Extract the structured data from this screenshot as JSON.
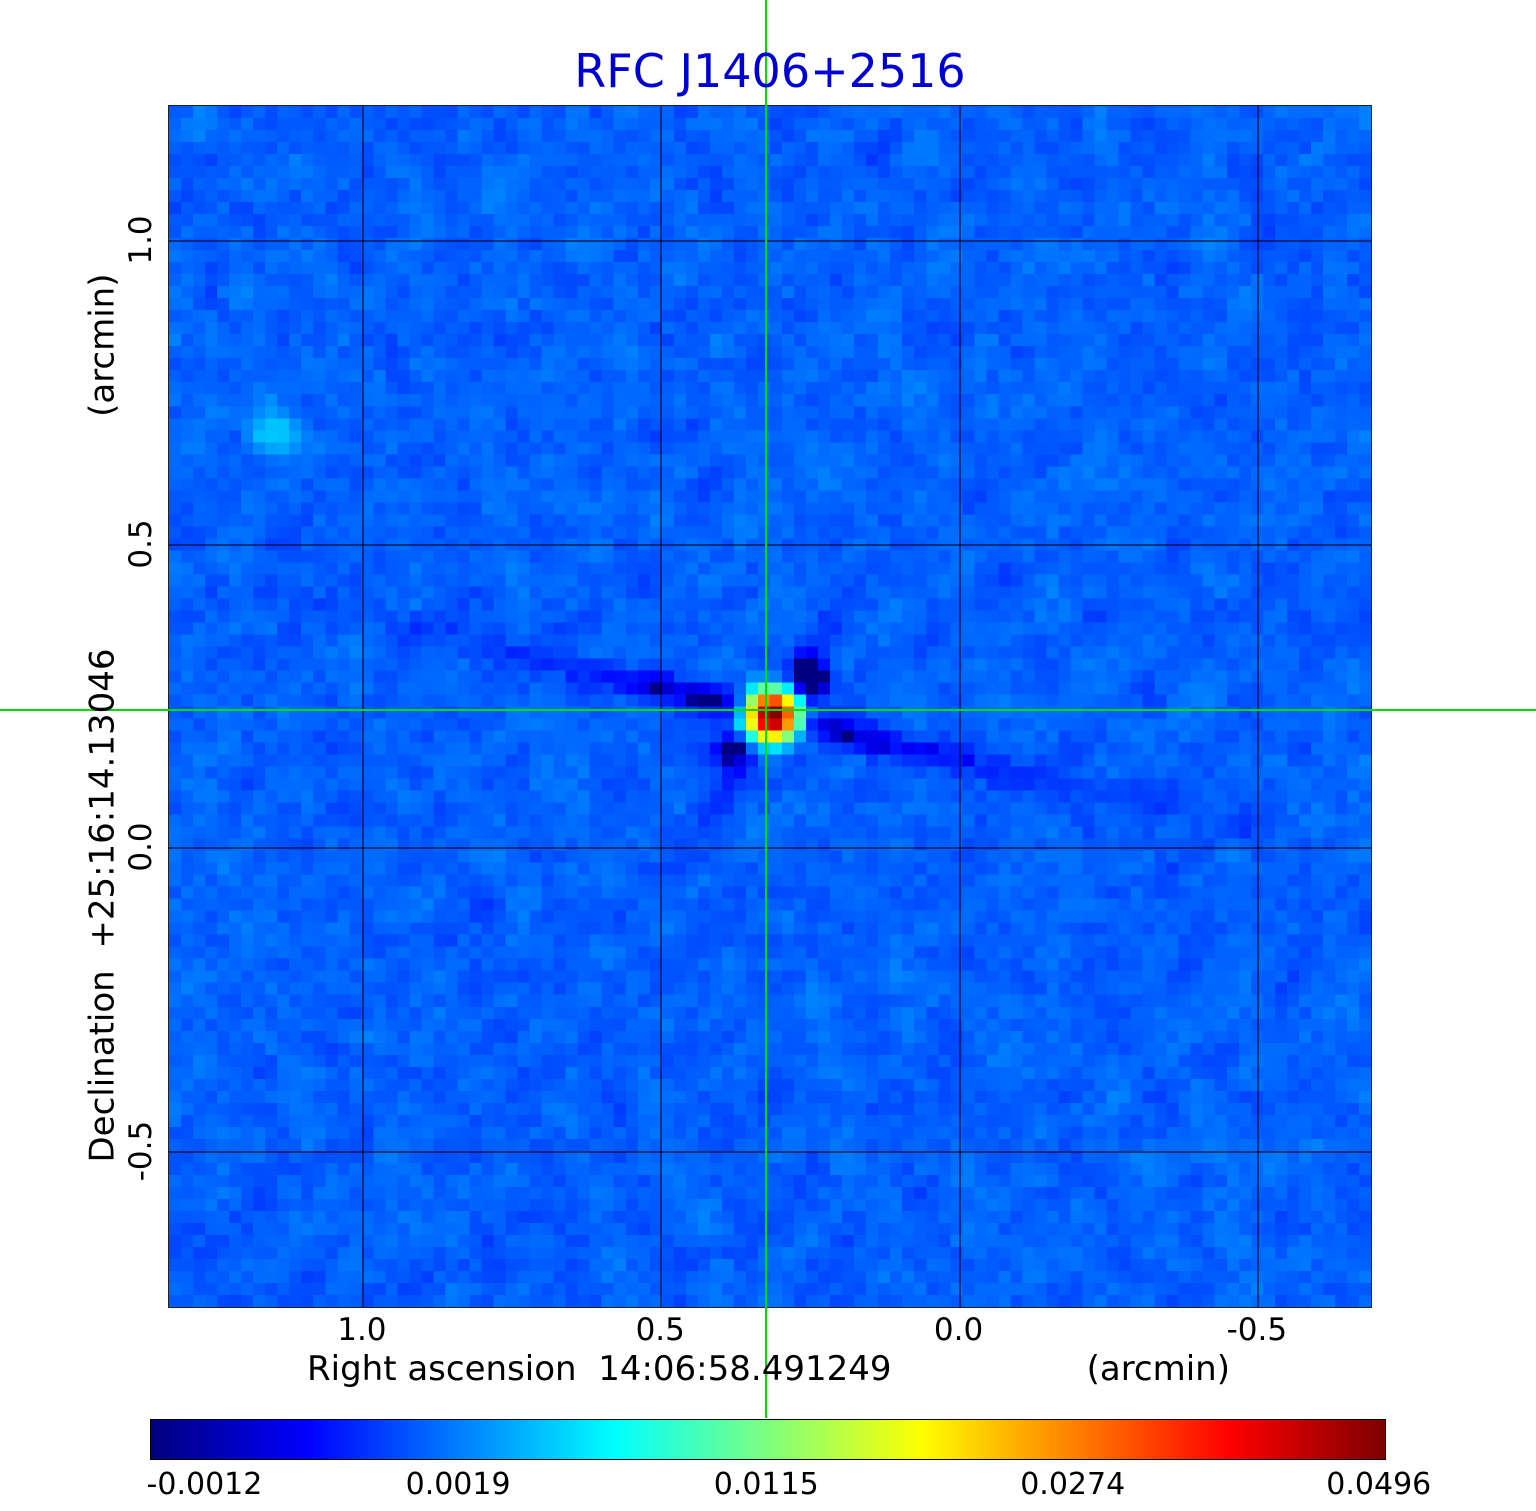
{
  "title": "RFC J1406+2516",
  "colors": {
    "title": "#0000d4",
    "crosshair": "#00dd00",
    "text": "#000000",
    "figure_background": "#ffffff"
  },
  "x_axis": {
    "label": "Right ascension",
    "value": "14:06:58.491249",
    "unit": "(arcmin)",
    "ticks": [
      1.0,
      0.5,
      0.0,
      -0.5
    ],
    "tick_labels": [
      "1.0",
      "0.5",
      "0.0",
      "-0.5"
    ]
  },
  "y_axis": {
    "label": "Declination",
    "value": "+25:16:14.13046",
    "unit": "(arcmin)",
    "ticks": [
      1.0,
      0.5,
      0.0,
      -0.5
    ],
    "tick_labels": [
      "1.0",
      "0.5",
      "0.0",
      "-0.5"
    ]
  },
  "colorbar": {
    "tick_labels": [
      "-0.0012",
      "0.0019",
      "0.0115",
      "0.0274",
      "0.0496"
    ],
    "tick_values": [
      -0.0012,
      0.0019,
      0.0115,
      0.0274,
      0.0496
    ]
  },
  "chart_data": {
    "type": "heatmap",
    "title": "RFC J1406+2516",
    "xlabel": "Right ascension 14:06:58.491249 (arcmin)",
    "ylabel": "Declination +25:16:14.13046 (arcmin)",
    "x_ticks": [
      1.0,
      0.5,
      0.0,
      -0.5
    ],
    "y_ticks": [
      1.0,
      0.5,
      0.0,
      -0.5
    ],
    "x_range_arcmin": [
      1.325,
      -0.693
    ],
    "y_range_arcmin": [
      1.222,
      -0.758
    ],
    "grid": true,
    "colormap": "jet",
    "stretch": "sqrt",
    "vmin": -0.0013,
    "vmax": 0.0502,
    "colorbar_ticks": [
      -0.0012,
      0.0019,
      0.0115,
      0.0274,
      0.0496
    ],
    "background_level": 0.0012,
    "noise_sigma": 0.0006,
    "source": {
      "x_arcmin": 0.322,
      "y_arcmin": 0.227,
      "peak": 0.0496
    },
    "crosshair_arcmin": {
      "x": 0.322,
      "y": 0.227
    },
    "sidelobe_streak_angles_deg": [
      13.5,
      -58
    ],
    "bright_patch": {
      "x_frac": 0.081,
      "y_frac": 0.266,
      "amplitude": 0.0035
    }
  }
}
